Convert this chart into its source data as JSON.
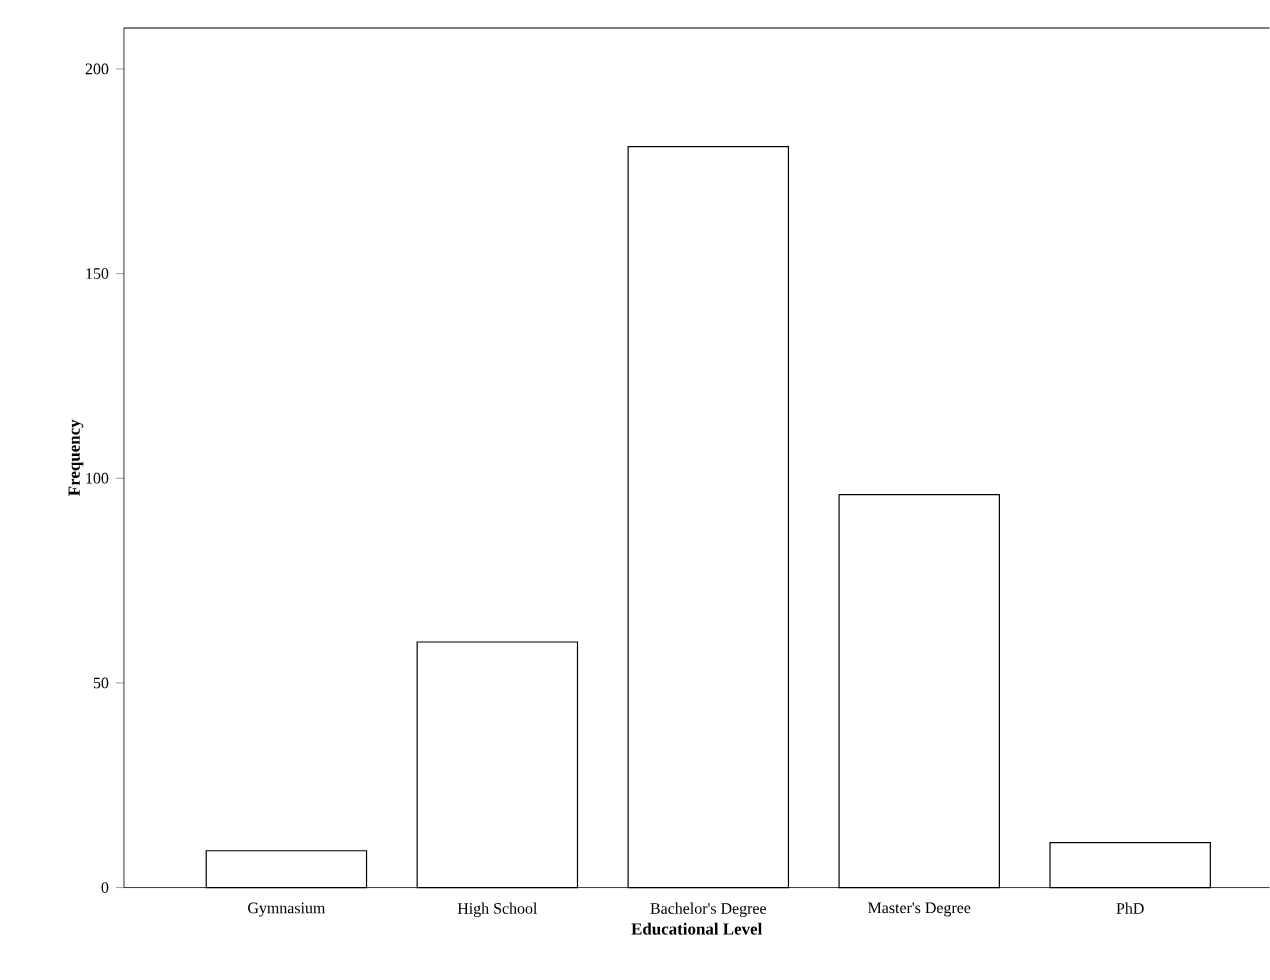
{
  "chart_data": {
    "type": "bar",
    "xlabel": "Educational Level",
    "ylabel": "Frequency",
    "categories": [
      "Gymnasium",
      "High School",
      "Bachelor's Degree",
      "Master's Degree",
      "PhD"
    ],
    "values": [
      9,
      60,
      181,
      96,
      11
    ],
    "color": "#ffffff",
    "ylim": [
      0,
      210
    ],
    "yticks": [
      0,
      50,
      100,
      150,
      200
    ],
    "grid": false
  }
}
